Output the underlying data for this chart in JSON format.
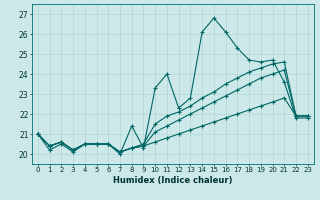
{
  "xlabel": "Humidex (Indice chaleur)",
  "bg_color": "#cce8e8",
  "grid_color": "#b0d8d8",
  "line_color": "#006666",
  "ylim": [
    19.5,
    27.5
  ],
  "xlim": [
    -0.5,
    23.5
  ],
  "yticks": [
    20,
    21,
    22,
    23,
    24,
    25,
    26,
    27
  ],
  "xticks": [
    0,
    1,
    2,
    3,
    4,
    5,
    6,
    7,
    8,
    9,
    10,
    11,
    12,
    13,
    14,
    15,
    16,
    17,
    18,
    19,
    20,
    21,
    22,
    23
  ],
  "line_main": [
    21.0,
    20.2,
    20.5,
    20.1,
    20.5,
    20.5,
    20.5,
    20.0,
    21.4,
    20.3,
    23.3,
    24.0,
    22.3,
    22.8,
    26.1,
    26.8,
    26.1,
    25.3,
    24.7,
    24.6,
    24.7,
    23.6,
    21.8,
    21.8
  ],
  "line_a": [
    21.0,
    20.4,
    20.6,
    20.2,
    20.5,
    20.5,
    20.5,
    20.1,
    20.3,
    20.5,
    21.5,
    21.9,
    22.1,
    22.4,
    22.8,
    23.1,
    23.5,
    23.8,
    24.1,
    24.3,
    24.5,
    24.6,
    21.9,
    21.9
  ],
  "line_b": [
    21.0,
    20.4,
    20.6,
    20.2,
    20.5,
    20.5,
    20.5,
    20.1,
    20.3,
    20.4,
    21.1,
    21.4,
    21.7,
    22.0,
    22.3,
    22.6,
    22.9,
    23.2,
    23.5,
    23.8,
    24.0,
    24.2,
    21.9,
    21.9
  ],
  "line_c": [
    21.0,
    20.4,
    20.6,
    20.2,
    20.5,
    20.5,
    20.5,
    20.1,
    20.3,
    20.4,
    20.6,
    20.8,
    21.0,
    21.2,
    21.4,
    21.6,
    21.8,
    22.0,
    22.2,
    22.4,
    22.6,
    22.8,
    21.9,
    21.9
  ]
}
